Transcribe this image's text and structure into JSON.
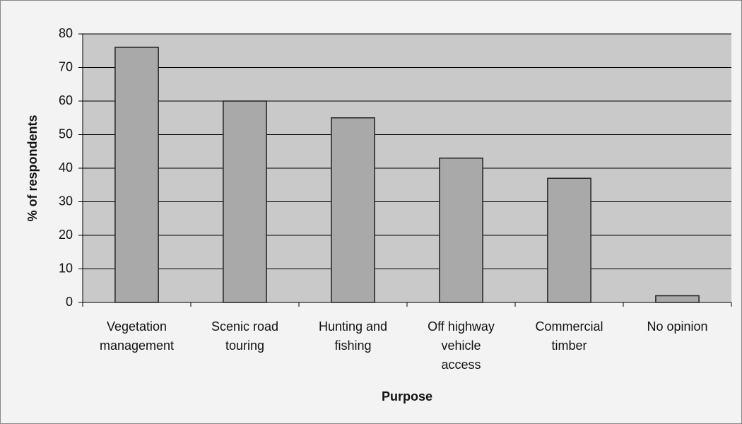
{
  "chart_data": {
    "type": "bar",
    "x_label": "Purpose",
    "y_label": "% of respondents",
    "categories": [
      "Vegetation\nmanagement",
      "Scenic road\ntouring",
      "Hunting and\nfishing",
      "Off highway\nvehicle\naccess",
      "Commercial\ntimber",
      "No opinion"
    ],
    "values": [
      76,
      60,
      55,
      43,
      37,
      2
    ],
    "color": "#a9a9a9",
    "ylim": [
      0,
      80
    ],
    "yticks": [
      0,
      10,
      20,
      30,
      40,
      50,
      60,
      70,
      80
    ],
    "grid": true
  }
}
